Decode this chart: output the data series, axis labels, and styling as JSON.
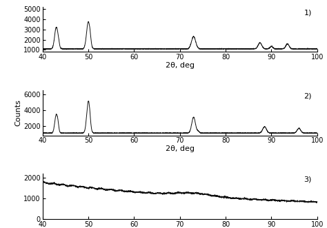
{
  "x_min": 40,
  "x_max": 100,
  "x_ticks": [
    40,
    50,
    60,
    70,
    80,
    90,
    100
  ],
  "xlabel": "2θ, deg",
  "ylabel": "Counts",
  "panel1_label": "1)",
  "panel2_label": "2)",
  "panel3_label": "3)",
  "panel1_ylim": [
    800,
    5200
  ],
  "panel1_yticks": [
    1000,
    2000,
    3000,
    4000,
    5000
  ],
  "panel2_ylim": [
    800,
    6500
  ],
  "panel2_yticks": [
    2000,
    4000,
    6000
  ],
  "panel3_ylim": [
    0,
    2200
  ],
  "panel3_yticks": [
    0,
    1000,
    2000
  ],
  "line_color": "#111111",
  "line_width": 0.7,
  "background_color": "#ffffff",
  "seed1": 42,
  "seed2": 43,
  "seed3": 44
}
